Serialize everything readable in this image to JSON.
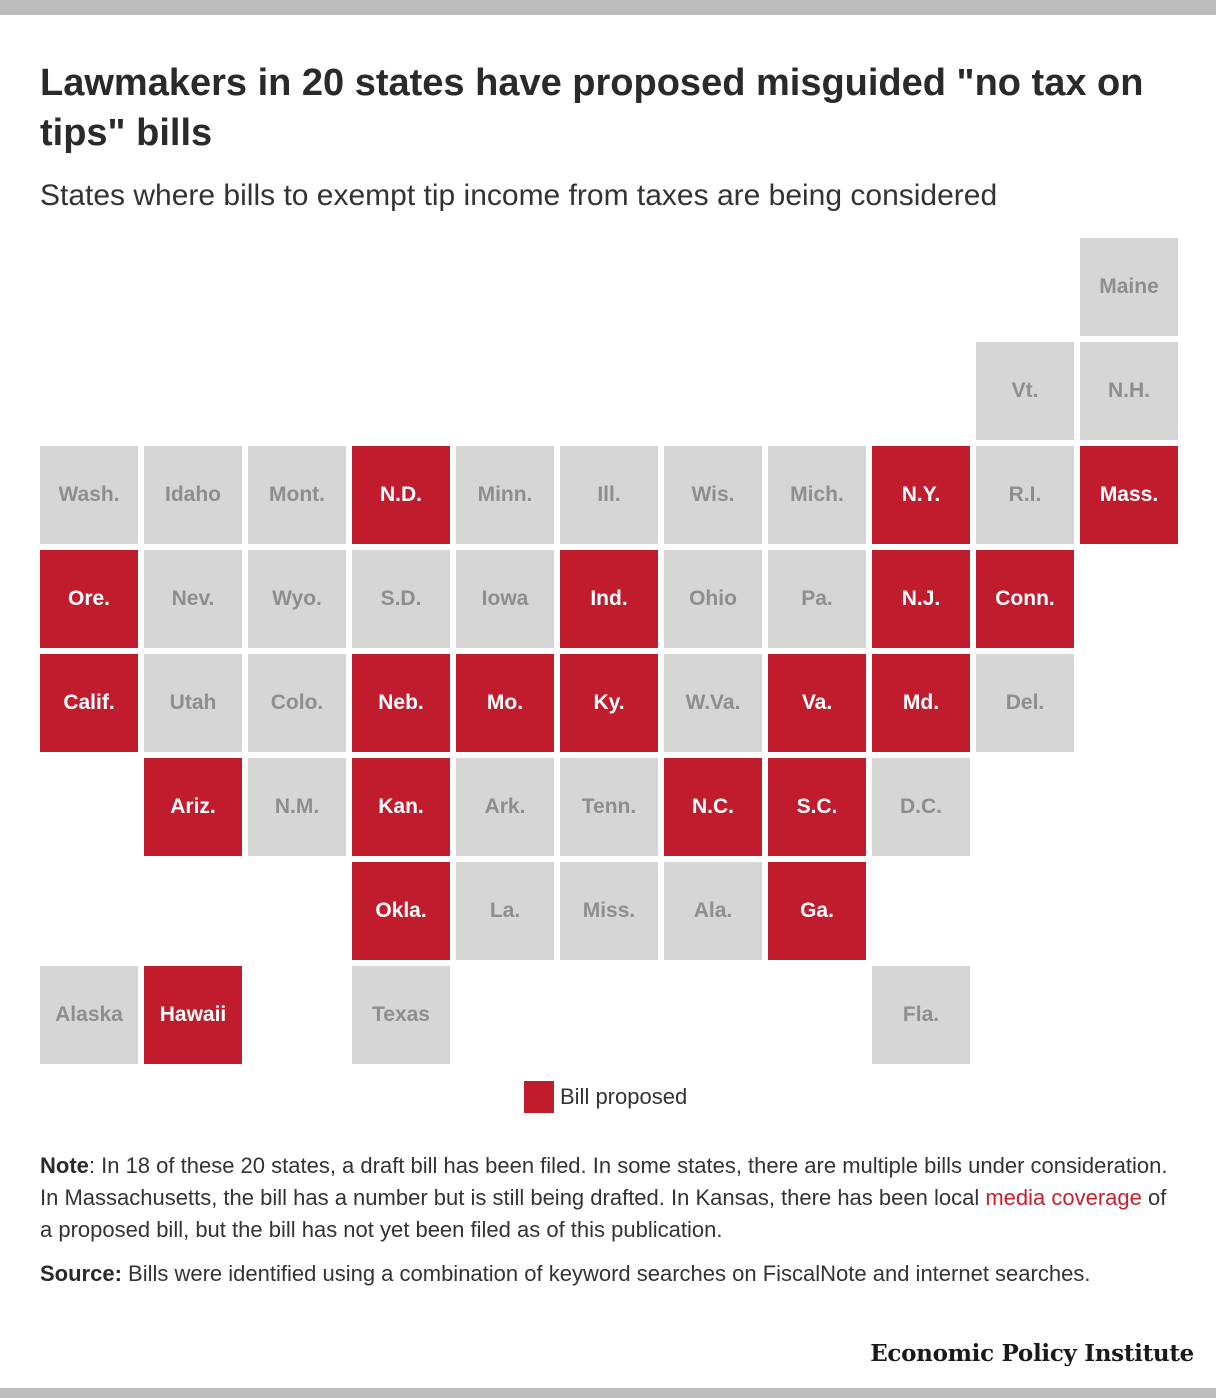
{
  "colors": {
    "proposed": "#c01c2e",
    "none": "#d6d6d6",
    "proposed_text": "#ffffff",
    "none_text": "#8e8e8e"
  },
  "title": "Lawmakers in 20 states have proposed misguided \"no tax on tips\" bills",
  "subtitle": "States where bills to exempt tip income from taxes are being considered",
  "legend": {
    "label": "Bill proposed"
  },
  "note": {
    "label": "Note",
    "text1": ": In 18 of these 20 states, a draft bill has been filed. In some states, there are multiple bills under consideration. In Massachusetts, the bill has a number but is still being drafted. In Kansas, there has been local ",
    "link": "media coverage",
    "text2": " of a proposed bill, but the bill has not yet been filed as of this publication."
  },
  "source": {
    "label": "Source:",
    "text": " Bills were identified using a combination of keyword searches on FiscalNote and internet searches."
  },
  "logo": "Economic Policy Institute",
  "chart_data": {
    "type": "tile-map",
    "legend": [
      "Bill proposed"
    ],
    "states": [
      {
        "name": "Maine",
        "row": 0,
        "col": 10,
        "proposed": false
      },
      {
        "name": "Vt.",
        "row": 1,
        "col": 9,
        "proposed": false
      },
      {
        "name": "N.H.",
        "row": 1,
        "col": 10,
        "proposed": false
      },
      {
        "name": "Wash.",
        "row": 2,
        "col": 0,
        "proposed": false
      },
      {
        "name": "Idaho",
        "row": 2,
        "col": 1,
        "proposed": false
      },
      {
        "name": "Mont.",
        "row": 2,
        "col": 2,
        "proposed": false
      },
      {
        "name": "N.D.",
        "row": 2,
        "col": 3,
        "proposed": true
      },
      {
        "name": "Minn.",
        "row": 2,
        "col": 4,
        "proposed": false
      },
      {
        "name": "Ill.",
        "row": 2,
        "col": 5,
        "proposed": false
      },
      {
        "name": "Wis.",
        "row": 2,
        "col": 6,
        "proposed": false
      },
      {
        "name": "Mich.",
        "row": 2,
        "col": 7,
        "proposed": false
      },
      {
        "name": "N.Y.",
        "row": 2,
        "col": 8,
        "proposed": true
      },
      {
        "name": "R.I.",
        "row": 2,
        "col": 9,
        "proposed": false
      },
      {
        "name": "Mass.",
        "row": 2,
        "col": 10,
        "proposed": true
      },
      {
        "name": "Ore.",
        "row": 3,
        "col": 0,
        "proposed": true
      },
      {
        "name": "Nev.",
        "row": 3,
        "col": 1,
        "proposed": false
      },
      {
        "name": "Wyo.",
        "row": 3,
        "col": 2,
        "proposed": false
      },
      {
        "name": "S.D.",
        "row": 3,
        "col": 3,
        "proposed": false
      },
      {
        "name": "Iowa",
        "row": 3,
        "col": 4,
        "proposed": false
      },
      {
        "name": "Ind.",
        "row": 3,
        "col": 5,
        "proposed": true
      },
      {
        "name": "Ohio",
        "row": 3,
        "col": 6,
        "proposed": false
      },
      {
        "name": "Pa.",
        "row": 3,
        "col": 7,
        "proposed": false
      },
      {
        "name": "N.J.",
        "row": 3,
        "col": 8,
        "proposed": true
      },
      {
        "name": "Conn.",
        "row": 3,
        "col": 9,
        "proposed": true
      },
      {
        "name": "Calif.",
        "row": 4,
        "col": 0,
        "proposed": true
      },
      {
        "name": "Utah",
        "row": 4,
        "col": 1,
        "proposed": false
      },
      {
        "name": "Colo.",
        "row": 4,
        "col": 2,
        "proposed": false
      },
      {
        "name": "Neb.",
        "row": 4,
        "col": 3,
        "proposed": true
      },
      {
        "name": "Mo.",
        "row": 4,
        "col": 4,
        "proposed": true
      },
      {
        "name": "Ky.",
        "row": 4,
        "col": 5,
        "proposed": true
      },
      {
        "name": "W.Va.",
        "row": 4,
        "col": 6,
        "proposed": false
      },
      {
        "name": "Va.",
        "row": 4,
        "col": 7,
        "proposed": true
      },
      {
        "name": "Md.",
        "row": 4,
        "col": 8,
        "proposed": true
      },
      {
        "name": "Del.",
        "row": 4,
        "col": 9,
        "proposed": false
      },
      {
        "name": "Ariz.",
        "row": 5,
        "col": 1,
        "proposed": true
      },
      {
        "name": "N.M.",
        "row": 5,
        "col": 2,
        "proposed": false
      },
      {
        "name": "Kan.",
        "row": 5,
        "col": 3,
        "proposed": true
      },
      {
        "name": "Ark.",
        "row": 5,
        "col": 4,
        "proposed": false
      },
      {
        "name": "Tenn.",
        "row": 5,
        "col": 5,
        "proposed": false
      },
      {
        "name": "N.C.",
        "row": 5,
        "col": 6,
        "proposed": true
      },
      {
        "name": "S.C.",
        "row": 5,
        "col": 7,
        "proposed": true
      },
      {
        "name": "D.C.",
        "row": 5,
        "col": 8,
        "proposed": false
      },
      {
        "name": "Okla.",
        "row": 6,
        "col": 3,
        "proposed": true
      },
      {
        "name": "La.",
        "row": 6,
        "col": 4,
        "proposed": false
      },
      {
        "name": "Miss.",
        "row": 6,
        "col": 5,
        "proposed": false
      },
      {
        "name": "Ala.",
        "row": 6,
        "col": 6,
        "proposed": false
      },
      {
        "name": "Ga.",
        "row": 6,
        "col": 7,
        "proposed": true
      },
      {
        "name": "Alaska",
        "row": 7,
        "col": 0,
        "proposed": false
      },
      {
        "name": "Hawaii",
        "row": 7,
        "col": 1,
        "proposed": true
      },
      {
        "name": "Texas",
        "row": 7,
        "col": 3,
        "proposed": false
      },
      {
        "name": "Fla.",
        "row": 7,
        "col": 8,
        "proposed": false
      }
    ]
  }
}
